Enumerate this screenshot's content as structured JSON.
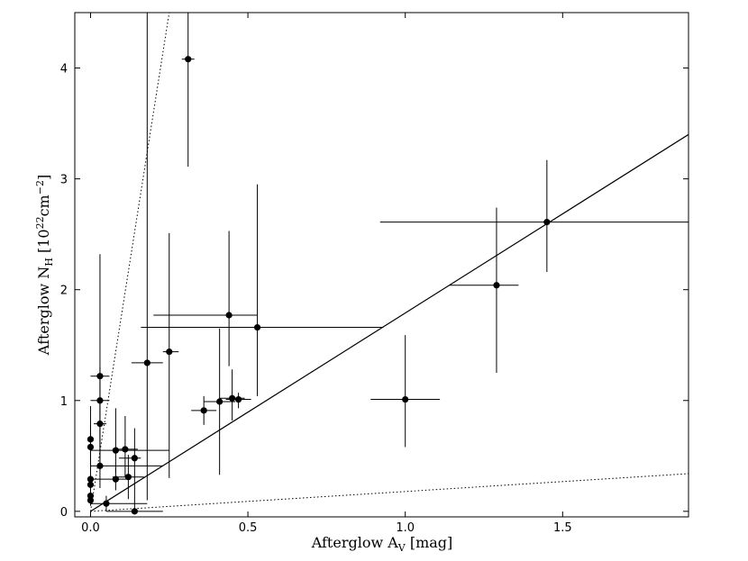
{
  "chart_data": {
    "type": "scatter",
    "xlabel": "Afterglow A",
    "xlabel_sub": "V",
    "xlabel_unit": " [mag]",
    "ylabel": "Afterglow N",
    "ylabel_sub": "H",
    "ylabel_unit_open": " [10",
    "ylabel_unit_exp1": "22",
    "ylabel_unit_mid": "cm",
    "ylabel_unit_exp2": "−2",
    "ylabel_unit_close": "]",
    "xlim": [
      -0.05,
      1.9
    ],
    "ylim": [
      -0.05,
      4.5
    ],
    "xticks": [
      0.0,
      0.5,
      1.0,
      1.5
    ],
    "xtick_labels": [
      "0.0",
      "0.5",
      "1.0",
      "1.5"
    ],
    "yticks": [
      0,
      1,
      2,
      3,
      4
    ],
    "ytick_labels": [
      "0",
      "1",
      "2",
      "3",
      "4"
    ],
    "grid": false,
    "lines": [
      {
        "style": "solid",
        "x": [
          0,
          1.9
        ],
        "y": [
          0,
          3.4
        ]
      },
      {
        "style": "dotted",
        "x": [
          0,
          1.9
        ],
        "y": [
          0,
          0.34
        ]
      },
      {
        "style": "dotted",
        "x": [
          0,
          0.25
        ],
        "y": [
          0,
          4.5
        ]
      }
    ],
    "points": [
      {
        "x": 0.31,
        "y": 4.08,
        "xerr": [
          0.02,
          0.02
        ],
        "yerr": [
          0.97,
          0.62
        ]
      },
      {
        "x": 1.45,
        "y": 2.61,
        "xerr": [
          0.53,
          0.45
        ],
        "yerr": [
          0.45,
          0.56
        ]
      },
      {
        "x": 1.29,
        "y": 2.04,
        "xerr": [
          0.15,
          0.07
        ],
        "yerr": [
          0.79,
          0.7
        ]
      },
      {
        "x": 0.53,
        "y": 1.66,
        "xerr": [
          0.37,
          0.4
        ],
        "yerr": [
          0.62,
          1.29
        ]
      },
      {
        "x": 0.44,
        "y": 1.77,
        "xerr": [
          0.24,
          0.09
        ],
        "yerr": [
          0.46,
          0.76
        ]
      },
      {
        "x": 0.25,
        "y": 1.44,
        "xerr": [
          0.02,
          0.03
        ],
        "yerr": [
          1.14,
          1.07
        ]
      },
      {
        "x": 0.18,
        "y": 1.34,
        "xerr": [
          0.05,
          0.05
        ],
        "yerr": [
          1.24,
          3.2
        ]
      },
      {
        "x": 0.14,
        "y": 0.48,
        "xerr": [
          0.05,
          0.02
        ],
        "yerr": [
          0.48,
          0.27
        ]
      },
      {
        "x": 1.0,
        "y": 1.01,
        "xerr": [
          0.11,
          0.11
        ],
        "yerr": [
          0.43,
          0.58
        ]
      },
      {
        "x": 0.47,
        "y": 1.01,
        "xerr": [
          0.04,
          0.04
        ],
        "yerr": [
          0.08,
          0.06
        ]
      },
      {
        "x": 0.45,
        "y": 1.02,
        "xerr": [
          0.04,
          0.04
        ],
        "yerr": [
          0.2,
          0.26
        ]
      },
      {
        "x": 0.41,
        "y": 0.99,
        "xerr": [
          0.05,
          0.05
        ],
        "yerr": [
          0.66,
          0.66
        ]
      },
      {
        "x": 0.36,
        "y": 0.91,
        "xerr": [
          0.04,
          0.04
        ],
        "yerr": [
          0.13,
          0.13
        ]
      },
      {
        "x": 0.03,
        "y": 1.22,
        "xerr": [
          0.03,
          0.03
        ],
        "yerr": [
          0.85,
          1.1
        ]
      },
      {
        "x": 0.03,
        "y": 1.0,
        "xerr": [
          0.03,
          0.03
        ],
        "yerr": [
          0.3,
          0.3
        ]
      },
      {
        "x": 0.03,
        "y": 0.79,
        "xerr": [
          0.02,
          0.02
        ],
        "yerr": [
          0.2,
          0.2
        ]
      },
      {
        "x": 0.0,
        "y": 0.65,
        "xerr": [
          0.0,
          0.0
        ],
        "yerr": [
          0.25,
          0.3
        ]
      },
      {
        "x": 0.0,
        "y": 0.58,
        "xerr": [
          0.0,
          0.0
        ],
        "yerr": [
          0.2,
          0.2
        ]
      },
      {
        "x": 0.08,
        "y": 0.55,
        "xerr": [
          0.08,
          0.17
        ],
        "yerr": [
          0.2,
          0.38
        ]
      },
      {
        "x": 0.11,
        "y": 0.56,
        "xerr": [
          0.04,
          0.04
        ],
        "yerr": [
          0.25,
          0.3
        ]
      },
      {
        "x": 0.03,
        "y": 0.41,
        "xerr": [
          0.03,
          0.2
        ],
        "yerr": [
          0.2,
          0.3
        ]
      },
      {
        "x": 0.08,
        "y": 0.29,
        "xerr": [
          0.08,
          0.04
        ],
        "yerr": [
          0.1,
          0.1
        ]
      },
      {
        "x": 0.12,
        "y": 0.31,
        "xerr": [
          0.05,
          0.05
        ],
        "yerr": [
          0.2,
          0.2
        ]
      },
      {
        "x": 0.0,
        "y": 0.29,
        "xerr": [
          0.0,
          0.0
        ],
        "yerr": [
          0.1,
          0.1
        ]
      },
      {
        "x": 0.0,
        "y": 0.24,
        "xerr": [
          0.0,
          0.0
        ],
        "yerr": [
          0.08,
          0.08
        ]
      },
      {
        "x": 0.0,
        "y": 0.14,
        "xerr": [
          0.0,
          0.0
        ],
        "yerr": [
          0.05,
          0.05
        ]
      },
      {
        "x": 0.0,
        "y": 0.1,
        "xerr": [
          0.0,
          0.0
        ],
        "yerr": [
          0.05,
          0.05
        ]
      },
      {
        "x": 0.05,
        "y": 0.07,
        "xerr": [
          0.05,
          0.13
        ],
        "yerr": [
          0.07,
          0.07
        ]
      },
      {
        "x": 0.14,
        "y": 0.0,
        "xerr": [
          0.09,
          0.09
        ],
        "yerr": [
          0.0,
          0.0
        ]
      }
    ]
  }
}
